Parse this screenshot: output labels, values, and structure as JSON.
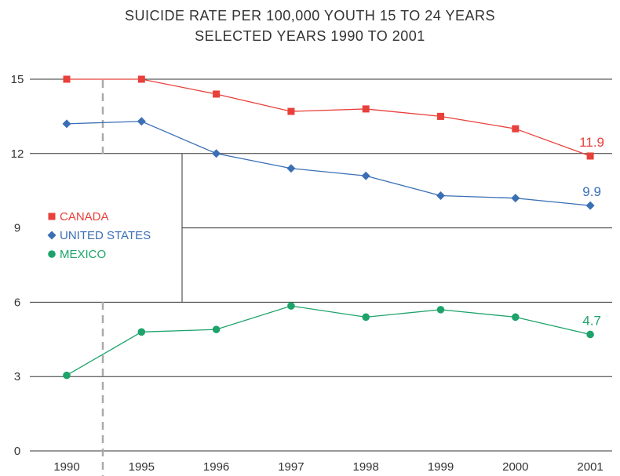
{
  "chart_data": {
    "type": "line",
    "title": "SUICIDE RATE PER 100,000 YOUTH 15 TO 24 YEARS",
    "subtitle": "SELECTED YEARS 1990 TO 2001",
    "categories": [
      "1990",
      "1995",
      "1996",
      "1997",
      "1998",
      "1999",
      "2000",
      "2001"
    ],
    "yticks": [
      0,
      3,
      6,
      9,
      12,
      15
    ],
    "ylim": [
      0,
      15
    ],
    "grid": true,
    "legend_position": "left",
    "series": [
      {
        "name": "CANADA",
        "color": "#e8403a",
        "marker": "square",
        "values": [
          15.0,
          15.0,
          14.4,
          13.7,
          13.8,
          13.5,
          13.0,
          11.9
        ],
        "end_label": "11.9"
      },
      {
        "name": "UNITED STATES",
        "color": "#3a6fb5",
        "marker": "diamond",
        "values": [
          13.2,
          13.3,
          12.0,
          11.4,
          11.1,
          10.3,
          10.2,
          9.9
        ],
        "end_label": "9.9"
      },
      {
        "name": "MEXICO",
        "color": "#1ea36a",
        "marker": "circle",
        "values": [
          3.05,
          4.8,
          4.9,
          5.85,
          5.4,
          5.7,
          5.4,
          4.7
        ],
        "end_label": "4.7"
      }
    ]
  }
}
